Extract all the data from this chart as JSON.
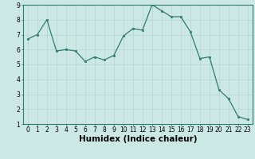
{
  "x": [
    0,
    1,
    2,
    3,
    4,
    5,
    6,
    7,
    8,
    9,
    10,
    11,
    12,
    13,
    14,
    15,
    16,
    17,
    18,
    19,
    20,
    21,
    22,
    23
  ],
  "y": [
    6.7,
    7.0,
    8.0,
    5.9,
    6.0,
    5.9,
    5.2,
    5.5,
    5.3,
    5.6,
    6.9,
    7.4,
    7.3,
    9.0,
    8.6,
    8.2,
    8.2,
    7.2,
    5.4,
    5.5,
    3.3,
    2.7,
    1.5,
    1.3
  ],
  "xlabel": "Humidex (Indice chaleur)",
  "ylim": [
    1,
    9
  ],
  "yticks": [
    1,
    2,
    3,
    4,
    5,
    6,
    7,
    8,
    9
  ],
  "xticks": [
    0,
    1,
    2,
    3,
    4,
    5,
    6,
    7,
    8,
    9,
    10,
    11,
    12,
    13,
    14,
    15,
    16,
    17,
    18,
    19,
    20,
    21,
    22,
    23
  ],
  "line_color": "#2e7d6e",
  "marker_color": "#2e7d6e",
  "bg_color": "#cce8e5",
  "grid_color": "#b8d8d4",
  "tick_fontsize": 5.5,
  "xlabel_fontsize": 7.5,
  "xlabel_bold": true
}
